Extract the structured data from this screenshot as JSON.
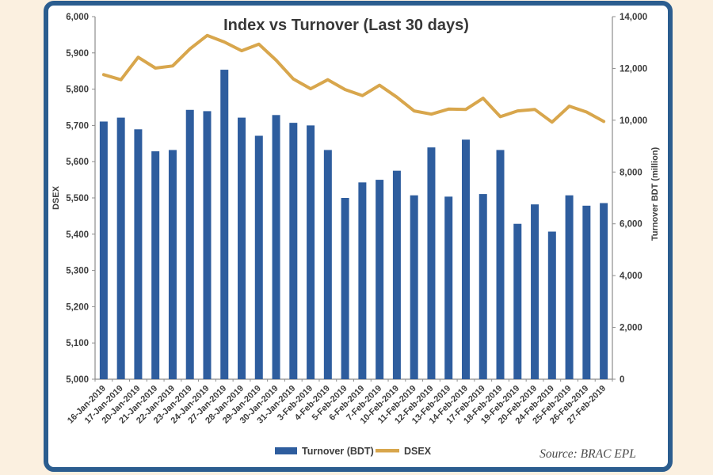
{
  "panel": {
    "background": "#ffffff",
    "border_color": "#2b5d8f",
    "page_background": "#fbf0e0"
  },
  "chart_data": {
    "type": "combo-bar-line",
    "title": "Index vs Turnover (Last 30 days)",
    "source": "Source: BRAC EPL",
    "categories": [
      "16-Jan-2019",
      "17-Jan-2019",
      "20-Jan-2019",
      "21-Jan-2019",
      "22-Jan-2019",
      "23-Jan-2019",
      "24-Jan-2019",
      "27-Jan-2019",
      "28-Jan-2019",
      "29-Jan-2019",
      "30-Jan-2019",
      "31-Jan-2019",
      "3-Feb-2019",
      "4-Feb-2019",
      "5-Feb-2019",
      "6-Feb-2019",
      "7-Feb-2019",
      "10-Feb-2019",
      "11-Feb-2019",
      "12-Feb-2019",
      "13-Feb-2019",
      "14-Feb-2019",
      "17-Feb-2019",
      "18-Feb-2019",
      "19-Feb-2019",
      "20-Feb-2019",
      "24-Feb-2019",
      "25-Feb-2019",
      "26-Feb-2019",
      "27-Feb-2019"
    ],
    "series": [
      {
        "name": "Turnover (BDT)",
        "type": "bar",
        "axis": "right",
        "color": "#2e5d9e",
        "values": [
          9950,
          10100,
          9650,
          8800,
          8850,
          10400,
          10350,
          11950,
          10100,
          9400,
          10200,
          9900,
          9800,
          8850,
          7000,
          7600,
          7700,
          8050,
          7100,
          8950,
          7050,
          9250,
          7150,
          8850,
          6000,
          6750,
          5700,
          7100,
          6700,
          6800
        ]
      },
      {
        "name": "DSEX",
        "type": "line",
        "axis": "left",
        "color": "#d8a64c",
        "values": [
          5840,
          5826,
          5888,
          5858,
          5864,
          5911,
          5948,
          5930,
          5906,
          5924,
          5880,
          5828,
          5801,
          5826,
          5799,
          5782,
          5811,
          5778,
          5740,
          5731,
          5745,
          5744,
          5775,
          5724,
          5740,
          5744,
          5709,
          5753,
          5737,
          5711
        ]
      }
    ],
    "left_axis": {
      "label": "DSEX",
      "min": 5000,
      "max": 6000,
      "step": 100,
      "tick_labels": [
        "5,000",
        "5,100",
        "5,200",
        "5,300",
        "5,400",
        "5,500",
        "5,600",
        "5,700",
        "5,800",
        "5,900",
        "6,000"
      ]
    },
    "right_axis": {
      "label": "Turnover BDT (million)",
      "min": 0,
      "max": 14000,
      "step": 2000,
      "tick_labels": [
        "0",
        "2,000",
        "4,000",
        "6,000",
        "8,000",
        "10,000",
        "12,000",
        "14,000"
      ]
    },
    "legend": {
      "position": "bottom-center",
      "entries": [
        "Turnover (BDT)",
        "DSEX"
      ]
    },
    "grid": false
  }
}
